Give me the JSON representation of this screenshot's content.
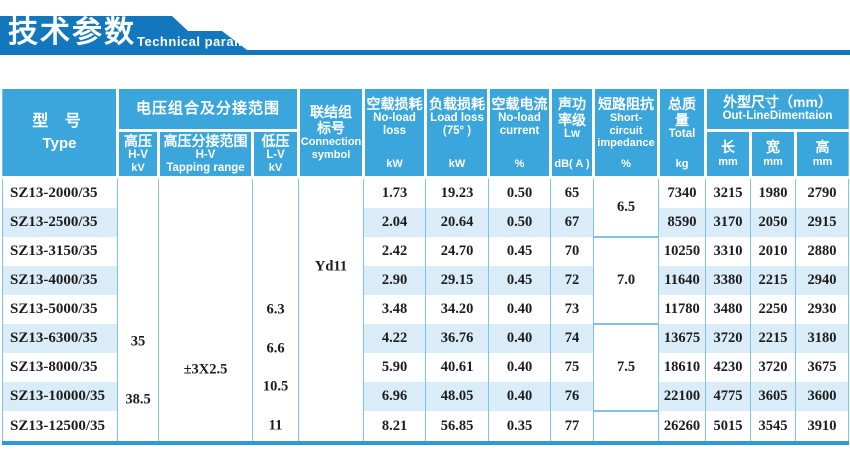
{
  "banner": {
    "title_cn": "技术参数",
    "title_en": "Technical parameter"
  },
  "colors": {
    "banner_blue": "#1277BD",
    "header_blue": "#3BA6DC",
    "stripe_blue": "#D9ECF8",
    "grid_blue": "#7EC3E8",
    "bottom_border_blue": "#2E9AD4"
  },
  "table": {
    "header": {
      "type_cn": "型  号",
      "type_en": "Type",
      "voltage_group": "电压组合及分接范围",
      "hv_cn": "高压",
      "hv_en": "H-V",
      "hv_unit": "kV",
      "tap_cn": "高压分接范围",
      "tap_en": "H-V",
      "tap_en2": "Tapping range",
      "lv_cn": "低压",
      "lv_en": "L-V",
      "lv_unit": "kV",
      "conn_cn1": "联结组",
      "conn_cn2": "标号",
      "conn_en1": "Connection",
      "conn_en2": "symbol",
      "nll_cn": "空载损耗",
      "nll_en1": "No-load",
      "nll_en2": "loss",
      "nll_unit": "kW",
      "ll_cn": "负载损耗",
      "ll_en1": "Load loss",
      "ll_en2": "(75° )",
      "ll_unit": "kW",
      "nlc_cn": "空载电流",
      "nlc_en1": "No-load",
      "nlc_en2": "current",
      "nlc_unit": "%",
      "lw_cn1": "声功",
      "lw_cn2": "率级",
      "lw_en": "Lw",
      "lw_unit": "dB( A )",
      "imp_cn": "短路阻抗",
      "imp_en1": "Short-",
      "imp_en2": "circuit",
      "imp_en3": "impedance",
      "imp_unit": "%",
      "total_cn1": "总质",
      "total_cn2": "量",
      "total_en": "Total",
      "total_unit": "kg",
      "dim_cn": "外型尺寸（mm）",
      "dim_en": "Out-LineDimentaion",
      "len_cn": "长",
      "len_unit": "mm",
      "wid_cn": "宽",
      "wid_unit": "mm",
      "hgt_cn": "高",
      "hgt_unit": "mm"
    },
    "merged": {
      "hv_values": [
        "35",
        "38.5"
      ],
      "tap_value": "±3X2.5",
      "lv_values": [
        "6.3",
        "6.6",
        "10.5",
        "11"
      ],
      "connection": "Yd11",
      "impedance": [
        "6.5",
        "7.0",
        "7.5",
        ""
      ]
    },
    "rows": [
      {
        "type": "SZ13-2000/35",
        "nll": "1.73",
        "ll": "19.23",
        "nlc": "0.50",
        "lw": "65",
        "total": "7340",
        "len": "3215",
        "wid": "1980",
        "hgt": "2790"
      },
      {
        "type": "SZ13-2500/35",
        "nll": "2.04",
        "ll": "20.64",
        "nlc": "0.50",
        "lw": "67",
        "total": "8590",
        "len": "3170",
        "wid": "2050",
        "hgt": "2915"
      },
      {
        "type": "SZ13-3150/35",
        "nll": "2.42",
        "ll": "24.70",
        "nlc": "0.45",
        "lw": "70",
        "total": "10250",
        "len": "3310",
        "wid": "2010",
        "hgt": "2880"
      },
      {
        "type": "SZ13-4000/35",
        "nll": "2.90",
        "ll": "29.15",
        "nlc": "0.45",
        "lw": "72",
        "total": "11640",
        "len": "3380",
        "wid": "2215",
        "hgt": "2940"
      },
      {
        "type": "SZ13-5000/35",
        "nll": "3.48",
        "ll": "34.20",
        "nlc": "0.40",
        "lw": "73",
        "total": "11780",
        "len": "3480",
        "wid": "2250",
        "hgt": "2930"
      },
      {
        "type": "SZ13-6300/35",
        "nll": "4.22",
        "ll": "36.76",
        "nlc": "0.40",
        "lw": "74",
        "total": "13675",
        "len": "3720",
        "wid": "2215",
        "hgt": "3180"
      },
      {
        "type": "SZ13-8000/35",
        "nll": "5.90",
        "ll": "40.61",
        "nlc": "0.40",
        "lw": "75",
        "total": "18610",
        "len": "4230",
        "wid": "3720",
        "hgt": "3675"
      },
      {
        "type": "SZ13-10000/35",
        "nll": "6.96",
        "ll": "48.05",
        "nlc": "0.40",
        "lw": "76",
        "total": "22100",
        "len": "4775",
        "wid": "3605",
        "hgt": "3600"
      },
      {
        "type": "SZ13-12500/35",
        "nll": "8.21",
        "ll": "56.85",
        "nlc": "0.35",
        "lw": "77",
        "total": "26260",
        "len": "5015",
        "wid": "3545",
        "hgt": "3910"
      }
    ]
  }
}
